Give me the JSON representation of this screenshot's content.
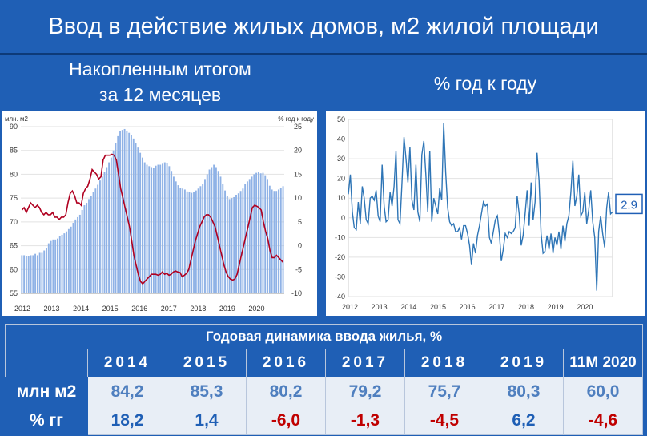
{
  "title": "Ввод в действие жилых домов, м2 жилой площади",
  "subtitle_left_1": "Накопленным итогом",
  "subtitle_left_2": "за 12 месяцев",
  "subtitle_right": "% год к году",
  "colors": {
    "background": "#1f5fb5",
    "bars": "#8fb2e6",
    "line_red": "#b00020",
    "line_blue": "#2e75b6",
    "negative": "#c00000"
  },
  "chart_data": [
    {
      "type": "bar",
      "left_axis_label": "млн. м2",
      "right_axis_label": "% год к году",
      "ylim": [
        55,
        90
      ],
      "yticks": [
        55,
        60,
        65,
        70,
        75,
        80,
        85,
        90
      ],
      "y2lim": [
        -10,
        25
      ],
      "y2ticks": [
        -10,
        -5,
        0,
        5,
        10,
        15,
        20,
        25
      ],
      "x_tick_labels": [
        "2012",
        "2013",
        "2014",
        "2015",
        "2016",
        "2017",
        "2018",
        "2019",
        "2020"
      ],
      "series": [
        {
          "name": "",
          "kind": "bar",
          "axis": "left",
          "values": [
            63,
            63,
            62.8,
            62.9,
            63,
            63,
            63.3,
            63,
            63.5,
            63.5,
            64,
            64.5,
            65.5,
            66,
            66.3,
            66.3,
            66.5,
            67,
            67.3,
            67.6,
            68,
            68.5,
            69,
            69.8,
            70.5,
            71,
            71.5,
            72.5,
            73.5,
            74,
            74.8,
            75.5,
            76.2,
            77,
            77.8,
            78.7,
            79.5,
            80.5,
            81.5,
            82.5,
            83.5,
            85,
            86.5,
            88,
            89,
            89.3,
            89.5,
            89,
            88.7,
            88.2,
            87.5,
            86.5,
            85.6,
            84.5,
            83.5,
            82.5,
            82,
            81.7,
            81.5,
            81.4,
            81.8,
            82,
            82,
            82.2,
            82.5,
            82.3,
            81.7,
            80.7,
            79.5,
            78.5,
            77.7,
            77.2,
            77,
            76.8,
            76.4,
            76.2,
            76.1,
            76.2,
            76.6,
            77,
            77.5,
            78,
            79,
            80,
            81,
            81.5,
            82,
            81.5,
            80.7,
            79.5,
            78,
            76.6,
            75.5,
            74.8,
            75,
            75.2,
            75.7,
            76,
            76.5,
            77,
            78,
            78.5,
            79,
            79.5,
            80,
            80.3,
            80.5,
            80.2,
            80.3,
            79.8,
            79,
            77.6,
            76.8,
            76.5,
            76.5,
            76.8,
            77.2,
            77.5
          ]
        },
        {
          "name": "",
          "kind": "line",
          "axis": "right",
          "values": [
            7.5,
            8,
            7,
            8,
            9,
            8.5,
            8,
            8.5,
            8,
            7,
            6.5,
            7,
            6.5,
            6.5,
            7,
            6,
            6,
            5.5,
            6,
            6,
            6.5,
            9,
            11,
            11.5,
            10.5,
            9,
            9,
            8.5,
            11,
            12,
            12.5,
            14,
            16,
            15.5,
            15,
            14,
            14.5,
            18,
            19,
            19,
            19,
            19.2,
            19,
            18,
            15,
            12,
            10,
            8,
            6,
            4,
            1,
            -2,
            -4,
            -6,
            -7.5,
            -8,
            -7.5,
            -7,
            -6.5,
            -6,
            -6,
            -6,
            -6.2,
            -6,
            -5.5,
            -6,
            -5.8,
            -6.2,
            -6,
            -5.5,
            -5.3,
            -5.5,
            -5.6,
            -6.5,
            -6.2,
            -5.8,
            -5,
            -3,
            -1,
            1,
            2.5,
            4,
            5,
            6,
            6.5,
            6.5,
            6,
            5,
            4,
            2,
            0,
            -2,
            -4,
            -5.5,
            -6.5,
            -7,
            -7.2,
            -7,
            -6,
            -4,
            -2,
            0,
            2,
            4,
            6,
            8,
            8.5,
            8.3,
            8,
            7.5,
            5,
            3,
            1.5,
            -1,
            -2.5,
            -2.5,
            -2,
            -2.5,
            -3,
            -3.5
          ]
        }
      ]
    },
    {
      "type": "line",
      "ylim": [
        -40,
        50
      ],
      "yticks": [
        -40,
        -30,
        -20,
        -10,
        0,
        10,
        20,
        30,
        40,
        50
      ],
      "x_tick_labels": [
        "2012",
        "2013",
        "2014",
        "2015",
        "2016",
        "2017",
        "2018",
        "2019",
        "2020"
      ],
      "last_value_label": "2.9",
      "series": [
        {
          "name": "",
          "values": [
            12,
            22,
            3,
            -5,
            -6,
            8,
            -3,
            16,
            10,
            -1,
            -3,
            10,
            11,
            9,
            14,
            1,
            -2,
            27,
            6,
            -2,
            -1,
            13,
            6,
            16,
            34,
            -1,
            -3,
            18,
            41,
            30,
            18,
            36,
            9,
            4,
            27,
            3,
            -2,
            32,
            39,
            22,
            3,
            34,
            -2,
            10,
            6,
            2,
            15,
            9,
            48,
            23,
            5,
            -2,
            -4,
            -3,
            -7,
            -7,
            -5,
            -11,
            -4,
            -4,
            -8,
            -14,
            -24,
            -13,
            -18,
            -9,
            -4,
            2,
            8,
            6,
            7,
            -10,
            -13,
            -7,
            -1,
            1,
            -8,
            -22,
            -16,
            -8,
            -10,
            -7,
            -8,
            -7,
            -5,
            11,
            2,
            -14,
            -9,
            2,
            14,
            -4,
            18,
            -1,
            8,
            33,
            19,
            -8,
            -18,
            -17,
            -9,
            -16,
            -8,
            -18,
            -10,
            -14,
            -7,
            -16,
            -4,
            -12,
            -3,
            1,
            13,
            29,
            6,
            11,
            22,
            1,
            3,
            13,
            -3,
            4,
            14,
            -2,
            -10,
            -37,
            -7,
            1,
            -8,
            -15,
            5,
            13,
            2,
            3
          ]
        }
      ]
    }
  ],
  "table": {
    "caption": "Годовая динамика ввода жилья, %",
    "years": [
      "2014",
      "2015",
      "2016",
      "2017",
      "2018",
      "2019",
      "11M 2020"
    ],
    "rows": [
      {
        "label": "млн м2",
        "values": [
          "84,2",
          "85,3",
          "80,2",
          "79,2",
          "75,7",
          "80,3",
          "60,0"
        ]
      },
      {
        "label": "% гг",
        "values": [
          "18,2",
          "1,4",
          "-6,0",
          "-1,3",
          "-4,5",
          "6,2",
          "-4,6"
        ]
      }
    ]
  }
}
